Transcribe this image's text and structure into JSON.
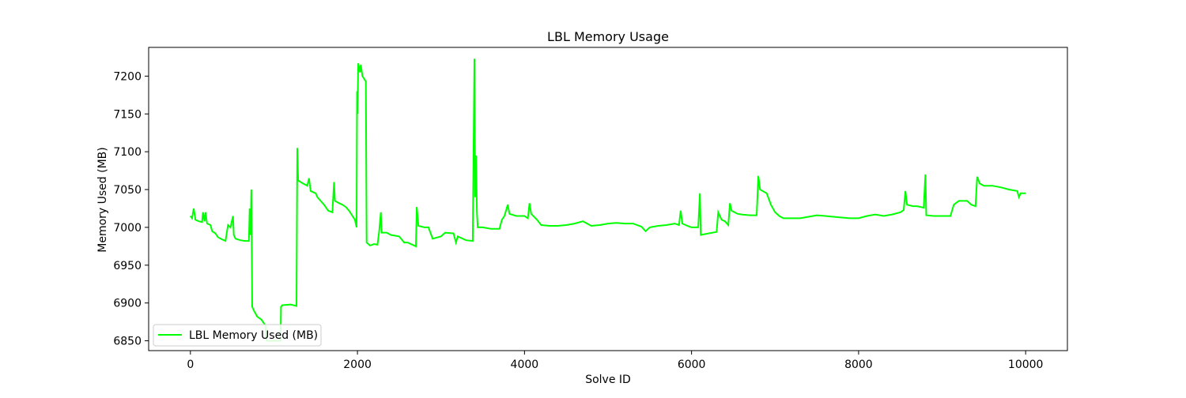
{
  "chart_data": {
    "type": "line",
    "title": "LBL Memory Usage",
    "xlabel": "Solve ID",
    "ylabel": "Memory Used (MB)",
    "xlim": [
      -500,
      10500
    ],
    "ylim": [
      6837,
      7238
    ],
    "xticks": [
      0,
      2000,
      4000,
      6000,
      8000,
      10000
    ],
    "yticks": [
      6850,
      6900,
      6950,
      7000,
      7050,
      7100,
      7150,
      7200
    ],
    "grid": false,
    "legend_position": "lower-left",
    "line_color": "#00ff00",
    "series": [
      {
        "name": "LBL Memory Used (MB)",
        "points": [
          [
            0,
            7015
          ],
          [
            20,
            7012
          ],
          [
            40,
            7025
          ],
          [
            60,
            7010
          ],
          [
            100,
            7008
          ],
          [
            140,
            7007
          ],
          [
            150,
            7020
          ],
          [
            170,
            7008
          ],
          [
            180,
            7020
          ],
          [
            200,
            7005
          ],
          [
            240,
            7003
          ],
          [
            260,
            6995
          ],
          [
            300,
            6992
          ],
          [
            330,
            6987
          ],
          [
            380,
            6984
          ],
          [
            420,
            6982
          ],
          [
            450,
            7003
          ],
          [
            480,
            7000
          ],
          [
            500,
            7010
          ],
          [
            510,
            7015
          ],
          [
            520,
            6990
          ],
          [
            540,
            6985
          ],
          [
            600,
            6983
          ],
          [
            650,
            6982
          ],
          [
            700,
            6982
          ],
          [
            710,
            7025
          ],
          [
            720,
            6990
          ],
          [
            730,
            7050
          ],
          [
            740,
            6895
          ],
          [
            760,
            6890
          ],
          [
            800,
            6882
          ],
          [
            850,
            6878
          ],
          [
            900,
            6870
          ],
          [
            905,
            6853
          ],
          [
            920,
            6850
          ],
          [
            1000,
            6850
          ],
          [
            1080,
            6850
          ],
          [
            1085,
            6895
          ],
          [
            1100,
            6897
          ],
          [
            1200,
            6898
          ],
          [
            1270,
            6896
          ],
          [
            1280,
            7105
          ],
          [
            1290,
            7062
          ],
          [
            1350,
            7058
          ],
          [
            1400,
            7055
          ],
          [
            1420,
            7065
          ],
          [
            1440,
            7048
          ],
          [
            1500,
            7045
          ],
          [
            1520,
            7040
          ],
          [
            1560,
            7035
          ],
          [
            1600,
            7030
          ],
          [
            1650,
            7022
          ],
          [
            1700,
            7020
          ],
          [
            1720,
            7060
          ],
          [
            1730,
            7035
          ],
          [
            1780,
            7032
          ],
          [
            1820,
            7030
          ],
          [
            1860,
            7027
          ],
          [
            1900,
            7022
          ],
          [
            1940,
            7015
          ],
          [
            1970,
            7010
          ],
          [
            1990,
            7000
          ],
          [
            1995,
            7180
          ],
          [
            2000,
            7150
          ],
          [
            2010,
            7217
          ],
          [
            2030,
            7205
          ],
          [
            2040,
            7215
          ],
          [
            2060,
            7200
          ],
          [
            2100,
            7193
          ],
          [
            2110,
            6980
          ],
          [
            2150,
            6976
          ],
          [
            2200,
            6978
          ],
          [
            2240,
            6977
          ],
          [
            2260,
            6995
          ],
          [
            2280,
            7020
          ],
          [
            2290,
            6993
          ],
          [
            2350,
            6993
          ],
          [
            2400,
            6990
          ],
          [
            2500,
            6988
          ],
          [
            2560,
            6980
          ],
          [
            2600,
            6980
          ],
          [
            2700,
            6975
          ],
          [
            2710,
            7027
          ],
          [
            2730,
            7002
          ],
          [
            2800,
            7000
          ],
          [
            2850,
            7000
          ],
          [
            2900,
            6985
          ],
          [
            3000,
            6988
          ],
          [
            3050,
            6993
          ],
          [
            3150,
            6992
          ],
          [
            3180,
            6980
          ],
          [
            3200,
            6988
          ],
          [
            3300,
            6983
          ],
          [
            3380,
            6982
          ],
          [
            3400,
            7223
          ],
          [
            3410,
            7040
          ],
          [
            3420,
            7095
          ],
          [
            3430,
            7020
          ],
          [
            3440,
            7000
          ],
          [
            3500,
            7000
          ],
          [
            3600,
            6998
          ],
          [
            3700,
            6998
          ],
          [
            3730,
            7010
          ],
          [
            3760,
            7015
          ],
          [
            3800,
            7030
          ],
          [
            3820,
            7018
          ],
          [
            3900,
            7015
          ],
          [
            4000,
            7015
          ],
          [
            4040,
            7012
          ],
          [
            4060,
            7032
          ],
          [
            4080,
            7018
          ],
          [
            4150,
            7010
          ],
          [
            4200,
            7003
          ],
          [
            4300,
            7002
          ],
          [
            4400,
            7002
          ],
          [
            4500,
            7003
          ],
          [
            4600,
            7005
          ],
          [
            4700,
            7008
          ],
          [
            4800,
            7002
          ],
          [
            4900,
            7003
          ],
          [
            5000,
            7005
          ],
          [
            5100,
            7006
          ],
          [
            5200,
            7005
          ],
          [
            5300,
            7005
          ],
          [
            5400,
            7001
          ],
          [
            5450,
            6995
          ],
          [
            5500,
            7000
          ],
          [
            5600,
            7002
          ],
          [
            5700,
            7003
          ],
          [
            5800,
            7005
          ],
          [
            5850,
            7003
          ],
          [
            5870,
            7022
          ],
          [
            5890,
            7005
          ],
          [
            5950,
            7002
          ],
          [
            6000,
            7000
          ],
          [
            6080,
            7000
          ],
          [
            6100,
            7045
          ],
          [
            6110,
            6990
          ],
          [
            6200,
            6992
          ],
          [
            6300,
            6994
          ],
          [
            6320,
            7020
          ],
          [
            6360,
            7010
          ],
          [
            6400,
            7008
          ],
          [
            6440,
            7003
          ],
          [
            6460,
            7032
          ],
          [
            6480,
            7022
          ],
          [
            6550,
            7018
          ],
          [
            6600,
            7017
          ],
          [
            6700,
            7016
          ],
          [
            6780,
            7016
          ],
          [
            6800,
            7068
          ],
          [
            6820,
            7050
          ],
          [
            6900,
            7045
          ],
          [
            6950,
            7030
          ],
          [
            7000,
            7020
          ],
          [
            7050,
            7015
          ],
          [
            7100,
            7012
          ],
          [
            7200,
            7012
          ],
          [
            7300,
            7012
          ],
          [
            7400,
            7014
          ],
          [
            7500,
            7016
          ],
          [
            7600,
            7015
          ],
          [
            7700,
            7014
          ],
          [
            7800,
            7013
          ],
          [
            7900,
            7012
          ],
          [
            8000,
            7012
          ],
          [
            8100,
            7015
          ],
          [
            8200,
            7017
          ],
          [
            8300,
            7015
          ],
          [
            8400,
            7017
          ],
          [
            8500,
            7020
          ],
          [
            8540,
            7023
          ],
          [
            8560,
            7048
          ],
          [
            8580,
            7030
          ],
          [
            8650,
            7028
          ],
          [
            8700,
            7028
          ],
          [
            8780,
            7026
          ],
          [
            8800,
            7070
          ],
          [
            8810,
            7016
          ],
          [
            8900,
            7015
          ],
          [
            9000,
            7015
          ],
          [
            9100,
            7015
          ],
          [
            9140,
            7030
          ],
          [
            9200,
            7035
          ],
          [
            9300,
            7035
          ],
          [
            9350,
            7030
          ],
          [
            9400,
            7028
          ],
          [
            9420,
            7067
          ],
          [
            9450,
            7058
          ],
          [
            9500,
            7055
          ],
          [
            9600,
            7055
          ],
          [
            9700,
            7053
          ],
          [
            9800,
            7050
          ],
          [
            9900,
            7048
          ],
          [
            9920,
            7040
          ],
          [
            9940,
            7045
          ],
          [
            10000,
            7045
          ]
        ]
      }
    ]
  }
}
